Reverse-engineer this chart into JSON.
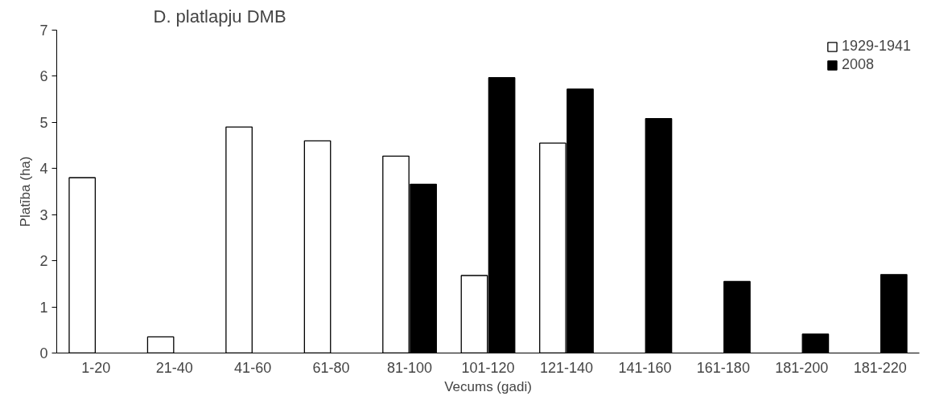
{
  "chart_data": {
    "type": "bar",
    "title": "D. platlapju DMB",
    "xlabel": "Vecums (gadi)",
    "ylabel": "Platība (ha)",
    "categories": [
      "1-20",
      "21-40",
      "41-60",
      "61-80",
      "81-100",
      "101-120",
      "121-140",
      "141-160",
      "161-180",
      "181-200",
      "181-220"
    ],
    "series": [
      {
        "name": "1929-1941",
        "color": "#ffffff",
        "values": [
          3.8,
          0.35,
          4.9,
          4.6,
          4.27,
          1.68,
          4.55,
          null,
          null,
          null,
          null
        ]
      },
      {
        "name": "2008",
        "color": "#000000",
        "values": [
          null,
          null,
          null,
          null,
          3.66,
          5.97,
          5.72,
          5.08,
          1.55,
          0.41,
          1.7
        ]
      }
    ],
    "ylim": [
      0,
      7
    ],
    "yticks": [
      0,
      1,
      2,
      3,
      4,
      5,
      6,
      7
    ],
    "grid": false,
    "legend": "top right"
  }
}
